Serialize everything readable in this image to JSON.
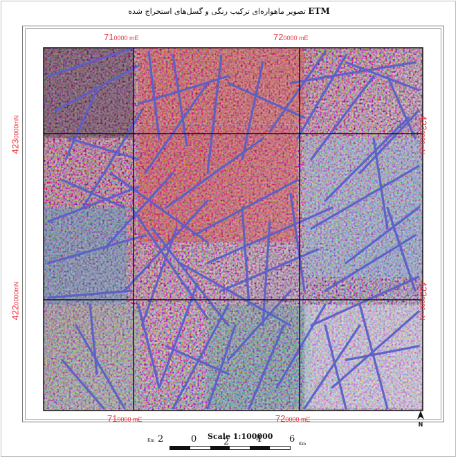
{
  "title": {
    "persian": "تصویر ماهواره‌ای ترکیب رنگی و گسل‌های استخراج شده",
    "sensor": "ETM"
  },
  "coordinates": {
    "top": [
      {
        "big": "71",
        "rest": "0000 mE"
      },
      {
        "big": "72",
        "rest": "0000 mE"
      }
    ],
    "bottom": [
      {
        "big": "71",
        "rest": "0000 mE"
      },
      {
        "big": "72",
        "rest": "0000 mE"
      }
    ],
    "left": [
      {
        "big": "423",
        "rest": "0000mN"
      },
      {
        "big": "422",
        "rest": "0000mN"
      }
    ],
    "right": [
      {
        "big": "423",
        "rest": "0000mN"
      },
      {
        "big": "422",
        "rest": "0000mN"
      }
    ]
  },
  "scale": {
    "title": "Scale 1:100000",
    "ticks": [
      "2",
      "0",
      "2",
      "4",
      "6"
    ],
    "unit": "Km"
  },
  "north_arrow": "N",
  "colors": {
    "coord_text": "#e8323c",
    "lineament": "#5a5fc8",
    "grid": "#111111"
  }
}
